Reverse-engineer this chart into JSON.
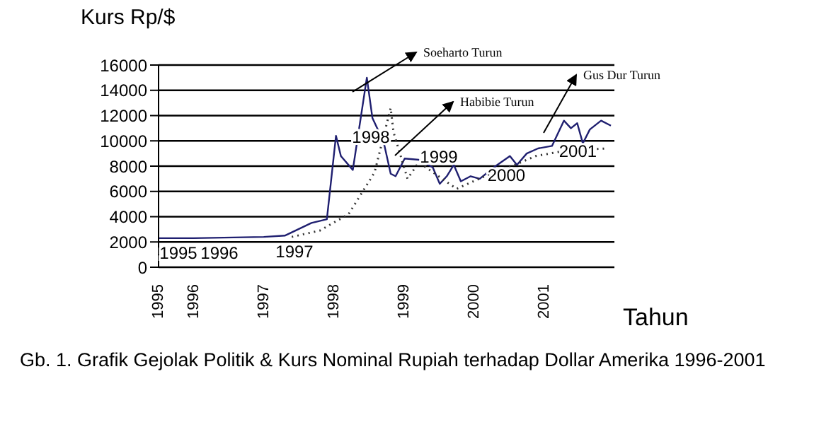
{
  "chart_data": {
    "type": "line",
    "title": "Gb. 1.  Grafik Gejolak Politik & Kurs Nominal Rupiah terhadap Dollar Amerika 1996-2001",
    "xlabel": "Tahun",
    "ylabel": "Kurs Rp/$",
    "xlim": [
      1995.5,
      2002
    ],
    "xticks": [
      {
        "value": 1995.5,
        "label": "1995"
      },
      {
        "value": 1996,
        "label": "1996"
      },
      {
        "value": 1997,
        "label": "1997"
      },
      {
        "value": 1998,
        "label": "1998"
      },
      {
        "value": 1999,
        "label": "1999"
      },
      {
        "value": 2000,
        "label": "2000"
      },
      {
        "value": 2001,
        "label": "2001"
      }
    ],
    "ylim": [
      0,
      16000
    ],
    "yticks": [
      0,
      2000,
      4000,
      6000,
      8000,
      10000,
      12000,
      14000,
      16000
    ],
    "grid": "y",
    "marker": "none",
    "series": [
      {
        "color": "#1f1f70",
        "line_style": "solid",
        "x": [
          1995.5,
          1996,
          1997,
          1997.3,
          1997.68,
          1997.9,
          1998.03,
          1998.1,
          1998.27,
          1998.47,
          1998.55,
          1998.71,
          1998.81,
          1998.88,
          1999.01,
          1999.21,
          1999.41,
          1999.51,
          1999.61,
          1999.71,
          1999.81,
          1999.95,
          2000.08,
          2000.28,
          2000.51,
          2000.61,
          2000.75,
          2000.91,
          2001.11,
          2001.28,
          2001.38,
          2001.47,
          2001.55,
          2001.65,
          2001.81,
          2001.95
        ],
        "values": [
          2300,
          2300,
          2400,
          2500,
          3500,
          3800,
          10400,
          8800,
          7700,
          15000,
          11800,
          9900,
          7400,
          7200,
          8600,
          8500,
          7900,
          6600,
          7200,
          8100,
          6800,
          7200,
          7000,
          7900,
          8800,
          8100,
          9000,
          9400,
          9600,
          11600,
          11000,
          11400,
          9800,
          10900,
          11600,
          11200
        ]
      },
      {
        "color": "#333333",
        "line_style": "dotted",
        "x": [
          1997.4,
          1997.8,
          1998.21,
          1998.58,
          1998.81,
          1998.85,
          1999.05,
          1999.21,
          1999.75,
          2000.15,
          2000.41,
          2000.88,
          2001.28,
          2001.88
        ],
        "values": [
          2400,
          2900,
          4200,
          7500,
          12600,
          10700,
          7000,
          8300,
          6200,
          7200,
          7700,
          8800,
          9200,
          9400
        ]
      }
    ],
    "annotations": [
      "1995",
      "1996",
      "1997",
      "1998",
      "1999",
      {
        "text": "2000",
        "x": 2000.46,
        "y": 7300
      },
      {
        "text": "2001",
        "x": 2001.48,
        "y": 9200
      },
      "Soeharto Turun",
      "Habibie Turun",
      "Gus Dur Turun"
    ]
  }
}
